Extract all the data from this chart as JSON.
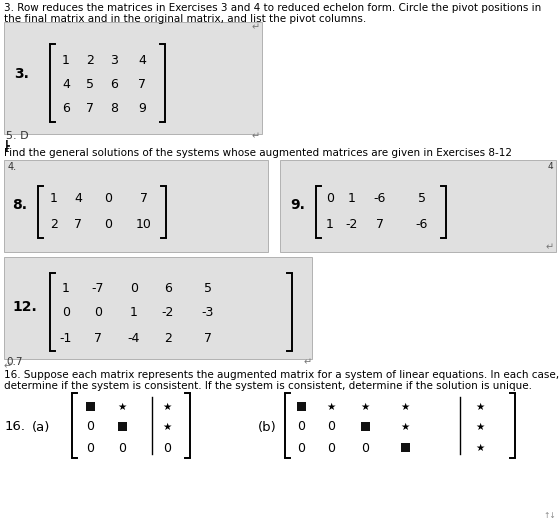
{
  "bg": "#ffffff",
  "box_bg": "#e8e8e8",
  "box_edge": "#b0b0b0",
  "dark_sq": "#111111",
  "title1": "3. Row reduces the matrices in Exercises 3 and 4 to reduced echelon form. Circle the pivot positions in",
  "title2": "the final matrix and in the original matrix, and list the pivot columns.",
  "sec_text": "Find the general solutions of the systems whose augmented matrices are given in Exercises 8-12",
  "p16t1": "16. Suppose each matrix represents the augmented matrix for a system of linear equations. In each case,",
  "p16t2": "determine if the system is consistent. If the system is consistent, determine if the solution is unique.",
  "mat3": [
    [
      "1",
      "2",
      "3",
      "4"
    ],
    [
      "4",
      "5",
      "6",
      "7"
    ],
    [
      "6",
      "7",
      "8",
      "9"
    ]
  ],
  "mat8": [
    [
      "1",
      "4",
      "0",
      "7"
    ],
    [
      "2",
      "7",
      "0",
      "10"
    ]
  ],
  "mat9": [
    [
      "0",
      "1",
      "-6",
      "5"
    ],
    [
      "1",
      "-2",
      "7",
      "-6"
    ]
  ],
  "mat12": [
    [
      "1",
      "-7",
      "0",
      "6",
      "5"
    ],
    [
      "0",
      "0",
      "1",
      "-2",
      "-3"
    ],
    [
      "-1",
      "7",
      "-4",
      "2",
      "7"
    ]
  ],
  "fs_main": 7.5,
  "fs_mat": 9,
  "fs_label": 10
}
